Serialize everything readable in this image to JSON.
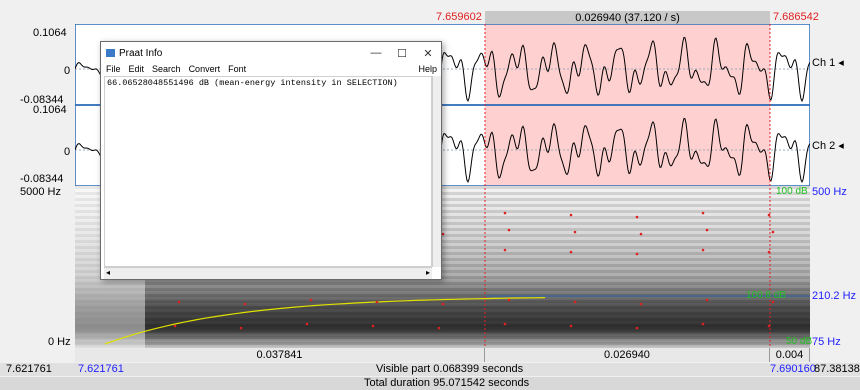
{
  "header": {
    "sel_start": "7.659602",
    "sel_duration": "0.026940 (37.120 / s)",
    "sel_end": "7.686542"
  },
  "waveform": {
    "ch1": {
      "max": "0.1064",
      "zero": "0",
      "min": "-0.08344",
      "label": "Ch 1"
    },
    "ch2": {
      "max": "0.1064",
      "zero": "0",
      "min": "-0.08344",
      "label": "Ch 2"
    }
  },
  "spectrogram": {
    "top": "5000 Hz",
    "bottom": "0 Hz",
    "right_top_green": "100 dB",
    "right_top_blue": "500 Hz",
    "pitch_green": "100.8 dB",
    "pitch_value": "210.2 Hz",
    "right_bottom_green": "50 dB",
    "right_bottom_blue": "75 Hz"
  },
  "bottom": {
    "seg1": "0.037841",
    "seg2": "0.026940",
    "seg3": "0.004",
    "left_time": "7.621761",
    "left_time_blue": "7.621761",
    "visible": "Visible part 0.068399 seconds",
    "right_time_blue": "7.690160",
    "right_time": "87.38138",
    "total": "Total duration 95.071542 seconds"
  },
  "info_window": {
    "title": "Praat Info",
    "menu": [
      "File",
      "Edit",
      "Search",
      "Convert",
      "Font"
    ],
    "help": "Help",
    "text": "66.06528048551496 dB (mean-energy intensity in SELECTION)"
  },
  "colors": {
    "selection": "#ffd0d0",
    "pitch_curve": "#e0e000",
    "formant_dots": "#e02020",
    "channel_frame": "#2a6ab8"
  }
}
